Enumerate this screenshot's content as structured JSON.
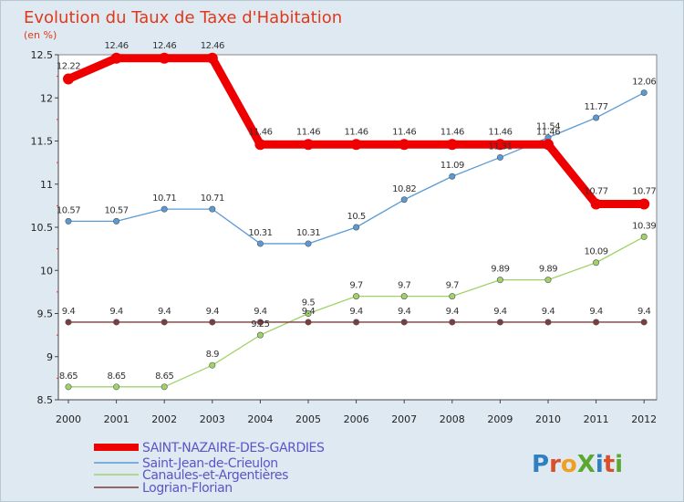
{
  "title": "Evolution du Taux de Taxe d'Habitation",
  "subtitle": "(en %)",
  "logo": "ProXiti",
  "chart_data": {
    "type": "line",
    "title": "Evolution du Taux de Taxe d'Habitation",
    "ylabel": "(en %)",
    "x": [
      "2000",
      "2001",
      "2002",
      "2003",
      "2004",
      "2005",
      "2006",
      "2007",
      "2008",
      "2009",
      "2010",
      "2011",
      "2012"
    ],
    "y_ticks": [
      "8.5",
      "9",
      "9.5",
      "10",
      "10.5",
      "11",
      "11.5",
      "12",
      "12.5"
    ],
    "ylim": [
      8.5,
      12.5
    ],
    "grid": false,
    "legend_position": "bottom-left",
    "series": [
      {
        "name": "SAINT-NAZAIRE-DES-GARDIES",
        "color": "#ee0000",
        "values": [
          12.22,
          12.46,
          12.46,
          12.46,
          11.46,
          11.46,
          11.46,
          11.46,
          11.46,
          11.46,
          11.46,
          10.77,
          10.77
        ],
        "labels": [
          "12.22",
          "12.46",
          "12.46",
          "12.46",
          "11.46",
          "11.46",
          "11.46",
          "11.46",
          "11.46",
          "11.46",
          "11.46",
          "10.77",
          "10.77"
        ]
      },
      {
        "name": "Saint-Jean-de-Crieulon",
        "color": "#5b9bd5",
        "values": [
          10.57,
          10.57,
          10.71,
          10.71,
          10.31,
          10.31,
          10.5,
          10.82,
          11.09,
          11.31,
          11.54,
          11.77,
          12.06
        ],
        "labels": [
          "10.57",
          "10.57",
          "10.71",
          "10.71",
          "10.31",
          "10.31",
          "10.5",
          "10.82",
          "11.09",
          "11.31",
          "11.54",
          "11.77",
          "12.06"
        ]
      },
      {
        "name": "Canaules-et-Argentières",
        "color": "#9fd36a",
        "values": [
          8.65,
          8.65,
          8.65,
          8.9,
          9.25,
          9.5,
          9.7,
          9.7,
          9.7,
          9.89,
          9.89,
          10.09,
          10.39
        ],
        "labels": [
          "8.65",
          "8.65",
          "8.65",
          "8.9",
          "9.25",
          "9.5",
          "9.7",
          "9.7",
          "9.7",
          "9.89",
          "9.89",
          "10.09",
          "10.39"
        ]
      },
      {
        "name": "Logrian-Florian",
        "color": "#7a3e3e",
        "values": [
          9.4,
          9.4,
          9.4,
          9.4,
          9.4,
          9.4,
          9.4,
          9.4,
          9.4,
          9.4,
          9.4,
          9.4,
          9.4
        ],
        "labels": [
          "9.4",
          "9.4",
          "9.4",
          "9.4",
          "9.4",
          "9.4",
          "9.4",
          "9.4",
          "9.4",
          "9.4",
          "9.4",
          "9.4",
          "9.4"
        ]
      }
    ]
  }
}
